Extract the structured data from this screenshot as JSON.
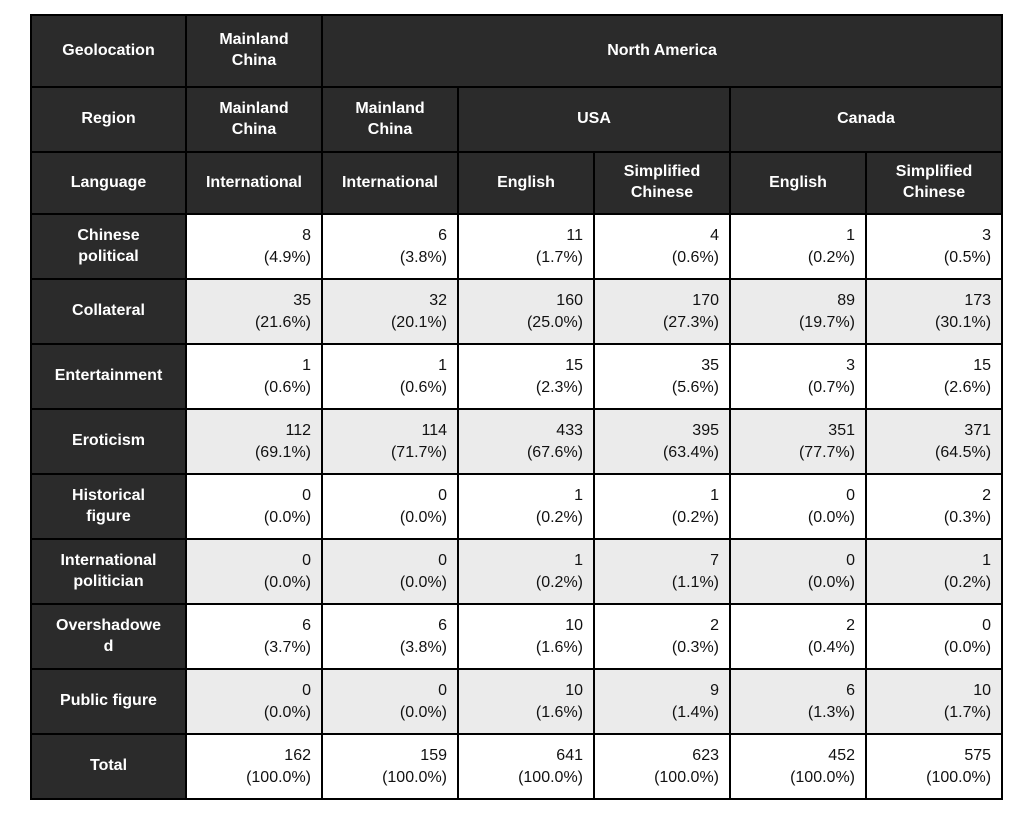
{
  "table": {
    "corner_labels": [
      "Geolocation",
      "Region",
      "Language"
    ],
    "geolocation_groups": [
      {
        "label": "Mainland China",
        "colspan": 1
      },
      {
        "label": "North America",
        "colspan": 5
      }
    ],
    "region_groups": [
      {
        "label": "Mainland China",
        "colspan": 1
      },
      {
        "label": "Mainland China",
        "colspan": 1
      },
      {
        "label": "USA",
        "colspan": 2
      },
      {
        "label": "Canada",
        "colspan": 2
      }
    ],
    "colors": {
      "header_bg": "#2b2b2b",
      "header_text": "#ffffff",
      "row_bg": "#ffffff",
      "row_alt_bg": "#ebebeb",
      "border": "#000000"
    }
  },
  "chart_data": {
    "type": "table",
    "columns": [
      {
        "geolocation": "Mainland China",
        "region": "Mainland China",
        "language": "International"
      },
      {
        "geolocation": "North America",
        "region": "Mainland China",
        "language": "International"
      },
      {
        "geolocation": "North America",
        "region": "USA",
        "language": "English"
      },
      {
        "geolocation": "North America",
        "region": "USA",
        "language": "Simplified Chinese"
      },
      {
        "geolocation": "North America",
        "region": "Canada",
        "language": "English"
      },
      {
        "geolocation": "North America",
        "region": "Canada",
        "language": "Simplified Chinese"
      }
    ],
    "rows": [
      {
        "label": "Chinese political",
        "counts": [
          8,
          6,
          11,
          4,
          1,
          3
        ],
        "percents": [
          4.9,
          3.8,
          1.7,
          0.6,
          0.2,
          0.5
        ]
      },
      {
        "label": "Collateral",
        "counts": [
          35,
          32,
          160,
          170,
          89,
          173
        ],
        "percents": [
          21.6,
          20.1,
          25.0,
          27.3,
          19.7,
          30.1
        ]
      },
      {
        "label": "Entertainment",
        "counts": [
          1,
          1,
          15,
          35,
          3,
          15
        ],
        "percents": [
          0.6,
          0.6,
          2.3,
          5.6,
          0.7,
          2.6
        ]
      },
      {
        "label": "Eroticism",
        "counts": [
          112,
          114,
          433,
          395,
          351,
          371
        ],
        "percents": [
          69.1,
          71.7,
          67.6,
          63.4,
          77.7,
          64.5
        ]
      },
      {
        "label": "Historical figure",
        "counts": [
          0,
          0,
          1,
          1,
          0,
          2
        ],
        "percents": [
          0.0,
          0.0,
          0.2,
          0.2,
          0.0,
          0.3
        ]
      },
      {
        "label": "International politician",
        "counts": [
          0,
          0,
          1,
          7,
          0,
          1
        ],
        "percents": [
          0.0,
          0.0,
          0.2,
          1.1,
          0.0,
          0.2
        ]
      },
      {
        "label": "Overshadowed",
        "counts": [
          6,
          6,
          10,
          2,
          2,
          0
        ],
        "percents": [
          3.7,
          3.8,
          1.6,
          0.3,
          0.4,
          0.0
        ]
      },
      {
        "label": "Public figure",
        "counts": [
          0,
          0,
          10,
          9,
          6,
          10
        ],
        "percents": [
          0.0,
          0.0,
          1.6,
          1.4,
          1.3,
          1.7
        ]
      },
      {
        "label": "Total",
        "counts": [
          162,
          159,
          641,
          623,
          452,
          575
        ],
        "percents": [
          100.0,
          100.0,
          100.0,
          100.0,
          100.0,
          100.0
        ]
      }
    ]
  }
}
